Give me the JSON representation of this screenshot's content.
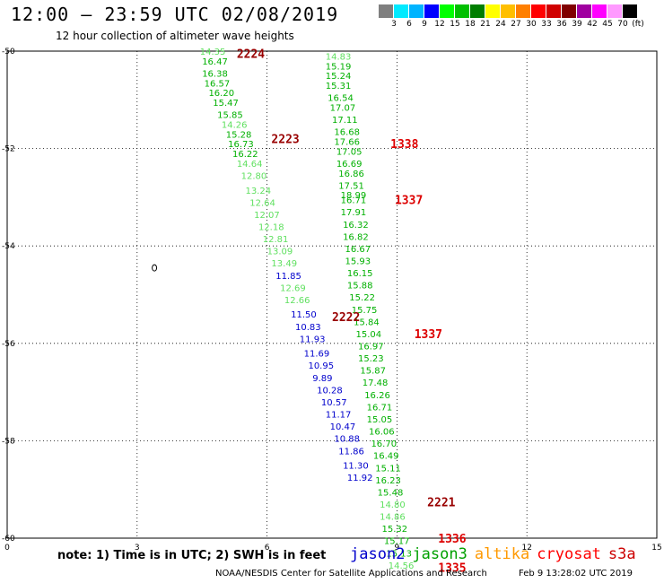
{
  "title": "12:00 – 23:59 UTC 02/08/2019",
  "subtitle": "12 hour collection of altimeter wave heights",
  "legend": {
    "colors": [
      "#7f7f7f",
      "#00eaff",
      "#00b4ff",
      "#0000ff",
      "#00ff00",
      "#00c000",
      "#007e00",
      "#ffff00",
      "#ffbf00",
      "#ff7f00",
      "#ff0000",
      "#d00000",
      "#800000",
      "#a000a0",
      "#ff00ff",
      "#ff9aff",
      "#000000"
    ],
    "labels": [
      "3",
      "6",
      "9",
      "12",
      "15",
      "18",
      "21",
      "24",
      "27",
      "30",
      "33",
      "36",
      "39",
      "42",
      "45",
      "70",
      "(ft)"
    ]
  },
  "axes": {
    "x_ticks": [
      "0",
      "3",
      "6",
      "9",
      "12",
      "15"
    ],
    "y_ticks": [
      "-50",
      "-52",
      "-54",
      "-56",
      "-58",
      "-60"
    ]
  },
  "colors": {
    "jason2": "#0000cc",
    "jason3": "#00a000",
    "altika": "#ff9900",
    "cryosat": "#ff0000",
    "s3a": "#cc0000",
    "lightgreen": "#60e060",
    "green": "#00b000",
    "darkred": "#990000",
    "red": "#dd0000"
  },
  "tracks": [
    {
      "name": "track-1",
      "points": [
        {
          "lon": 4.45,
          "lat": -50.0,
          "v": "14.35",
          "c": "lightgreen"
        },
        {
          "lon": 4.5,
          "lat": -50.2,
          "v": "16.47",
          "c": "green"
        },
        {
          "lon": 4.5,
          "lat": -50.45,
          "v": "16.38",
          "c": "green"
        },
        {
          "lon": 4.55,
          "lat": -50.65,
          "v": "16.57",
          "c": "green"
        },
        {
          "lon": 4.65,
          "lat": -50.85,
          "v": "16.20",
          "c": "green"
        },
        {
          "lon": 4.75,
          "lat": -51.05,
          "v": "15.47",
          "c": "green"
        },
        {
          "lon": 4.85,
          "lat": -51.3,
          "v": "15.85",
          "c": "green"
        },
        {
          "lon": 4.95,
          "lat": -51.5,
          "v": "14.26",
          "c": "lightgreen"
        },
        {
          "lon": 5.05,
          "lat": -51.7,
          "v": "15.28",
          "c": "green"
        },
        {
          "lon": 5.1,
          "lat": -51.9,
          "v": "16.73",
          "c": "green"
        },
        {
          "lon": 5.2,
          "lat": -52.1,
          "v": "16.22",
          "c": "green"
        },
        {
          "lon": 5.3,
          "lat": -52.3,
          "v": "14.64",
          "c": "lightgreen"
        },
        {
          "lon": 5.4,
          "lat": -52.55,
          "v": "12.80",
          "c": "lightgreen"
        },
        {
          "lon": 5.5,
          "lat": -52.85,
          "v": "13.24",
          "c": "lightgreen"
        },
        {
          "lon": 5.6,
          "lat": -53.1,
          "v": "12.64",
          "c": "lightgreen"
        },
        {
          "lon": 5.7,
          "lat": -53.35,
          "v": "12.07",
          "c": "lightgreen"
        },
        {
          "lon": 5.8,
          "lat": -53.6,
          "v": "12.18",
          "c": "lightgreen"
        },
        {
          "lon": 5.9,
          "lat": -53.85,
          "v": "12.81",
          "c": "lightgreen"
        },
        {
          "lon": 6.0,
          "lat": -54.1,
          "v": "13.09",
          "c": "lightgreen"
        },
        {
          "lon": 6.1,
          "lat": -54.35,
          "v": "13.49",
          "c": "lightgreen"
        },
        {
          "lon": 6.2,
          "lat": -54.6,
          "v": "11.85",
          "c": "jason2"
        },
        {
          "lon": 6.3,
          "lat": -54.85,
          "v": "12.69",
          "c": "lightgreen"
        },
        {
          "lon": 6.4,
          "lat": -55.1,
          "v": "12.66",
          "c": "lightgreen"
        },
        {
          "lon": 6.55,
          "lat": -55.4,
          "v": "11.50",
          "c": "jason2"
        },
        {
          "lon": 6.65,
          "lat": -55.65,
          "v": "10.83",
          "c": "jason2"
        },
        {
          "lon": 6.75,
          "lat": -55.9,
          "v": "11.93",
          "c": "jason2"
        },
        {
          "lon": 6.85,
          "lat": -56.2,
          "v": "11.69",
          "c": "jason2"
        },
        {
          "lon": 6.95,
          "lat": -56.45,
          "v": "10.95",
          "c": "jason2"
        },
        {
          "lon": 7.05,
          "lat": -56.7,
          "v": "9.89",
          "c": "jason2"
        },
        {
          "lon": 7.15,
          "lat": -56.95,
          "v": "10.28",
          "c": "jason2"
        },
        {
          "lon": 7.25,
          "lat": -57.2,
          "v": "10.57",
          "c": "jason2"
        },
        {
          "lon": 7.35,
          "lat": -57.45,
          "v": "11.17",
          "c": "jason2"
        },
        {
          "lon": 7.45,
          "lat": -57.7,
          "v": "10.47",
          "c": "jason2"
        },
        {
          "lon": 7.55,
          "lat": -57.95,
          "v": "10.88",
          "c": "jason2"
        },
        {
          "lon": 7.65,
          "lat": -58.2,
          "v": "11.86",
          "c": "jason2"
        },
        {
          "lon": 7.75,
          "lat": -58.5,
          "v": "11.30",
          "c": "jason2"
        },
        {
          "lon": 7.85,
          "lat": -58.75,
          "v": "11.92",
          "c": "jason2"
        }
      ]
    },
    {
      "name": "track-2",
      "points": [
        {
          "lon": 7.35,
          "lat": -50.1,
          "v": "14.83",
          "c": "lightgreen"
        },
        {
          "lon": 7.35,
          "lat": -50.3,
          "v": "15.19",
          "c": "green"
        },
        {
          "lon": 7.35,
          "lat": -50.5,
          "v": "15.24",
          "c": "green"
        },
        {
          "lon": 7.35,
          "lat": -50.7,
          "v": "15.31",
          "c": "green"
        },
        {
          "lon": 7.4,
          "lat": -50.95,
          "v": "16.54",
          "c": "green"
        },
        {
          "lon": 7.45,
          "lat": -51.15,
          "v": "17.07",
          "c": "green"
        },
        {
          "lon": 7.5,
          "lat": -51.4,
          "v": "17.11",
          "c": "green"
        },
        {
          "lon": 7.55,
          "lat": -51.65,
          "v": "16.68",
          "c": "green"
        },
        {
          "lon": 7.55,
          "lat": -51.85,
          "v": "17.66",
          "c": "green"
        },
        {
          "lon": 7.6,
          "lat": -52.05,
          "v": "17.05",
          "c": "green"
        },
        {
          "lon": 7.6,
          "lat": -52.3,
          "v": "16.69",
          "c": "green"
        },
        {
          "lon": 7.65,
          "lat": -52.5,
          "v": "16.86",
          "c": "green"
        },
        {
          "lon": 7.65,
          "lat": -52.75,
          "v": "17.51",
          "c": "green"
        },
        {
          "lon": 7.7,
          "lat": -52.95,
          "v": "18.99",
          "c": "green"
        },
        {
          "lon": 7.7,
          "lat": -53.05,
          "v": "16.71",
          "c": "green"
        },
        {
          "lon": 7.7,
          "lat": -53.3,
          "v": "17.91",
          "c": "green"
        },
        {
          "lon": 7.75,
          "lat": -53.55,
          "v": "16.32",
          "c": "green"
        },
        {
          "lon": 7.75,
          "lat": -53.8,
          "v": "16.82",
          "c": "green"
        },
        {
          "lon": 7.8,
          "lat": -54.05,
          "v": "16.67",
          "c": "green"
        },
        {
          "lon": 7.8,
          "lat": -54.3,
          "v": "15.93",
          "c": "green"
        },
        {
          "lon": 7.85,
          "lat": -54.55,
          "v": "16.15",
          "c": "green"
        },
        {
          "lon": 7.85,
          "lat": -54.8,
          "v": "15.88",
          "c": "green"
        },
        {
          "lon": 7.9,
          "lat": -55.05,
          "v": "15.22",
          "c": "green"
        },
        {
          "lon": 7.95,
          "lat": -55.3,
          "v": "15.75",
          "c": "green"
        },
        {
          "lon": 8.0,
          "lat": -55.55,
          "v": "15.84",
          "c": "green"
        },
        {
          "lon": 8.05,
          "lat": -55.8,
          "v": "15.04",
          "c": "green"
        },
        {
          "lon": 8.1,
          "lat": -56.05,
          "v": "16.97",
          "c": "green"
        },
        {
          "lon": 8.1,
          "lat": -56.3,
          "v": "15.23",
          "c": "green"
        },
        {
          "lon": 8.15,
          "lat": -56.55,
          "v": "15.87",
          "c": "green"
        },
        {
          "lon": 8.2,
          "lat": -56.8,
          "v": "17.48",
          "c": "green"
        },
        {
          "lon": 8.25,
          "lat": -57.05,
          "v": "16.26",
          "c": "green"
        },
        {
          "lon": 8.3,
          "lat": -57.3,
          "v": "16.71",
          "c": "green"
        },
        {
          "lon": 8.3,
          "lat": -57.55,
          "v": "15.05",
          "c": "green"
        },
        {
          "lon": 8.35,
          "lat": -57.8,
          "v": "16.06",
          "c": "green"
        },
        {
          "lon": 8.4,
          "lat": -58.05,
          "v": "16.70",
          "c": "green"
        },
        {
          "lon": 8.45,
          "lat": -58.3,
          "v": "16.49",
          "c": "green"
        },
        {
          "lon": 8.5,
          "lat": -58.55,
          "v": "15.11",
          "c": "green"
        },
        {
          "lon": 8.5,
          "lat": -58.8,
          "v": "16.23",
          "c": "green"
        },
        {
          "lon": 8.55,
          "lat": -59.05,
          "v": "15.48",
          "c": "green"
        },
        {
          "lon": 8.6,
          "lat": -59.3,
          "v": "14.80",
          "c": "lightgreen"
        },
        {
          "lon": 8.6,
          "lat": -59.55,
          "v": "14.86",
          "c": "lightgreen"
        },
        {
          "lon": 8.65,
          "lat": -59.8,
          "v": "15.32",
          "c": "green"
        },
        {
          "lon": 8.7,
          "lat": -60.05,
          "v": "15.17",
          "c": "green"
        },
        {
          "lon": 8.75,
          "lat": -60.3,
          "v": "15.13",
          "c": "green"
        },
        {
          "lon": 8.8,
          "lat": -60.55,
          "v": "14.56",
          "c": "lightgreen"
        }
      ]
    }
  ],
  "orbit_labels": [
    {
      "lon": 5.3,
      "lat": -50.05,
      "v": "2224",
      "c": "darkred"
    },
    {
      "lon": 6.1,
      "lat": -51.8,
      "v": "2223",
      "c": "darkred"
    },
    {
      "lon": 8.85,
      "lat": -51.9,
      "v": "1338",
      "c": "red"
    },
    {
      "lon": 8.95,
      "lat": -53.05,
      "v": "1337",
      "c": "red"
    },
    {
      "lon": 7.5,
      "lat": -55.45,
      "v": "2222",
      "c": "darkred"
    },
    {
      "lon": 9.4,
      "lat": -55.8,
      "v": "1337",
      "c": "red"
    },
    {
      "lon": 9.7,
      "lat": -59.25,
      "v": "2221",
      "c": "darkred"
    },
    {
      "lon": 9.95,
      "lat": -60.0,
      "v": "1336",
      "c": "red"
    },
    {
      "lon": 9.95,
      "lat": -60.6,
      "v": "1335",
      "c": "red"
    }
  ],
  "island_marker": {
    "lon": 3.4,
    "lat": -54.45
  },
  "footer_note": "note:  1) Time is in UTC;  2) SWH is in feet",
  "satellites": [
    {
      "name": "jason2",
      "c": "jason2"
    },
    {
      "name": "jason3",
      "c": "jason3"
    },
    {
      "name": "altika",
      "c": "altika"
    },
    {
      "name": "cryosat",
      "c": "cryosat"
    },
    {
      "name": "s3a",
      "c": "s3a"
    }
  ],
  "credit": "NOAA/NESDIS Center for Satellite Applications and Research",
  "timestamp": "Feb  9 13:28:02 UTC 2019"
}
